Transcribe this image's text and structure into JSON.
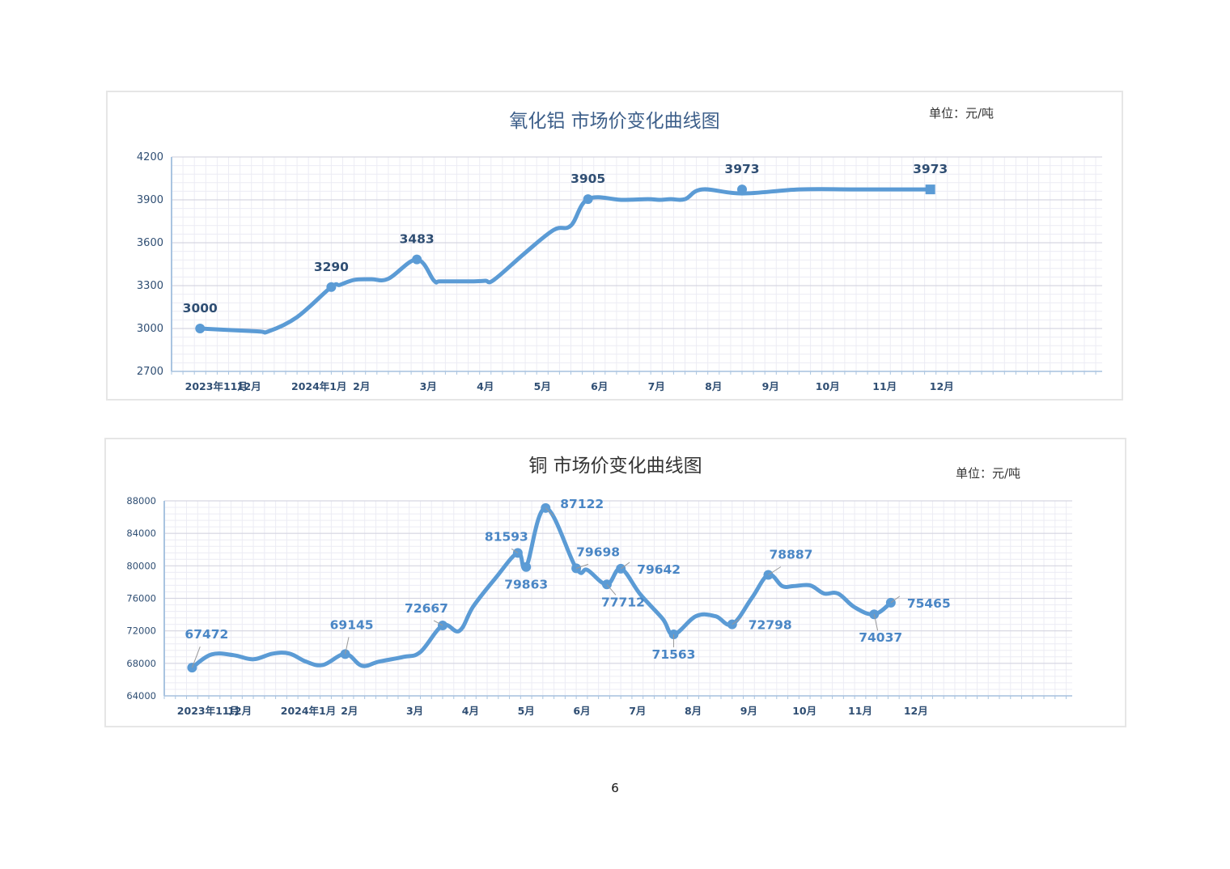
{
  "colors": {
    "line": "#5b9bd5",
    "label_dark": "#2f4e73",
    "label_blue": "#4a86c5",
    "grid_minor": "#ececf4",
    "grid_major": "#d6d6e2",
    "axis": "#a9c4e0",
    "tick_text": "#2f4e73"
  },
  "chart_data": [
    {
      "type": "line",
      "title": "氧化铝  市场价变化曲线图",
      "unit": "单位：元/吨",
      "x_labels": [
        "2023年11月",
        "12月",
        "2024年1月",
        "2月",
        "3月",
        "4月",
        "5月",
        "6月",
        "7月",
        "8月",
        "9月",
        "10月",
        "11月",
        "12月"
      ],
      "ylim": [
        2700,
        4200
      ],
      "yticks": [
        2700,
        3000,
        3300,
        3600,
        3900,
        4200
      ],
      "grid": true,
      "series": [
        {
          "x": [
            0.5,
            1.5,
            1.7,
            2.2,
            2.8,
            2.95,
            3.2,
            3.5,
            3.8,
            4.3,
            4.6,
            4.7,
            5.05,
            5.3,
            5.5,
            5.65,
            6.2,
            6.7,
            7.0,
            7.3,
            7.9,
            8.35,
            8.55,
            8.75,
            9.0,
            9.3,
            10.0,
            11.0,
            12.0,
            13.3
          ],
          "values": [
            3000,
            2980,
            2980,
            3080,
            3290,
            3305,
            3340,
            3345,
            3348,
            3483,
            3335,
            3330,
            3330,
            3330,
            3334,
            3340,
            3530,
            3690,
            3720,
            3905,
            3900,
            3905,
            3900,
            3905,
            3905,
            3973,
            3945,
            3973,
            3973,
            3973
          ]
        }
      ],
      "data_labels": [
        {
          "x": 0.5,
          "y": 3000,
          "text": "3000"
        },
        {
          "x": 2.8,
          "y": 3290,
          "text": "3290"
        },
        {
          "x": 4.3,
          "y": 3483,
          "text": "3483"
        },
        {
          "x": 7.3,
          "y": 3905,
          "text": "3905"
        },
        {
          "x": 10.0,
          "y": 3973,
          "text": "3973"
        },
        {
          "x": 13.3,
          "y": 3973,
          "text": "3973"
        }
      ]
    },
    {
      "type": "line",
      "title": "铜  市场价变化曲线图",
      "unit": "单位：元/吨",
      "x_labels": [
        "2023年11月",
        "12月",
        "2024年1月",
        "2月",
        "3月",
        "4月",
        "5月",
        "6月",
        "7月",
        "8月",
        "9月",
        "10月",
        "11月",
        "12月"
      ],
      "ylim": [
        64000,
        88000
      ],
      "yticks": [
        64000,
        68000,
        72000,
        76000,
        80000,
        84000,
        88000
      ],
      "grid": true,
      "series": [
        {
          "x": [
            0.5,
            0.85,
            1.25,
            1.6,
            1.95,
            2.25,
            2.55,
            2.85,
            3.25,
            3.55,
            3.85,
            4.3,
            4.6,
            5.0,
            5.3,
            5.55,
            5.95,
            6.35,
            6.5,
            6.85,
            7.4,
            7.6,
            7.95,
            8.2,
            8.55,
            8.95,
            9.15,
            9.55,
            9.9,
            10.2,
            10.55,
            10.85,
            11.1,
            11.3,
            11.6,
            11.85,
            12.1,
            12.4,
            12.75,
            13.05
          ],
          "values": [
            67472,
            69100,
            69000,
            68500,
            69200,
            69200,
            68200,
            67800,
            69145,
            67700,
            68200,
            68800,
            69400,
            72667,
            72000,
            75000,
            78500,
            81593,
            79863,
            87122,
            79698,
            79500,
            77712,
            79642,
            76500,
            73500,
            71563,
            73800,
            73800,
            72798,
            76000,
            78887,
            77500,
            77500,
            77600,
            76600,
            76600,
            74900,
            74037,
            75465
          ]
        }
      ],
      "data_labels": [
        {
          "x": 0.5,
          "y": 67472,
          "text": "67472"
        },
        {
          "x": 3.25,
          "y": 69145,
          "text": "69145"
        },
        {
          "x": 5.0,
          "y": 72667,
          "text": "72667"
        },
        {
          "x": 6.35,
          "y": 81593,
          "text": "81593"
        },
        {
          "x": 6.5,
          "y": 79863,
          "text": "79863"
        },
        {
          "x": 6.85,
          "y": 87122,
          "text": "87122"
        },
        {
          "x": 7.4,
          "y": 79698,
          "text": "79698"
        },
        {
          "x": 7.95,
          "y": 77712,
          "text": "77712"
        },
        {
          "x": 8.2,
          "y": 79642,
          "text": "79642"
        },
        {
          "x": 9.15,
          "y": 71563,
          "text": "71563"
        },
        {
          "x": 10.2,
          "y": 72798,
          "text": "72798"
        },
        {
          "x": 10.85,
          "y": 78887,
          "text": "78887"
        },
        {
          "x": 12.75,
          "y": 74037,
          "text": "74037"
        },
        {
          "x": 13.05,
          "y": 75465,
          "text": "75465"
        }
      ]
    }
  ],
  "page_number": "6"
}
